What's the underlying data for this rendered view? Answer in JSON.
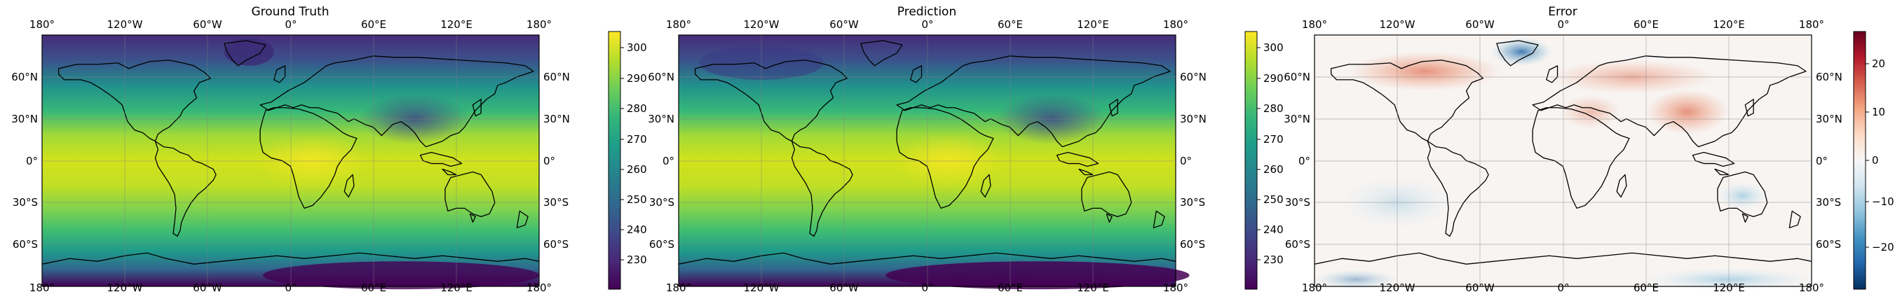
{
  "panels": [
    {
      "title": "Ground Truth",
      "map": "viridis"
    },
    {
      "title": "Prediction",
      "map": "viridis"
    },
    {
      "title": "Error",
      "map": "diverging"
    }
  ],
  "lon_ticks": [
    "180°",
    "120°W",
    "60°W",
    "0°",
    "60°E",
    "120°E",
    "180°"
  ],
  "lat_ticks": [
    "60°N",
    "30°N",
    "0°",
    "30°S",
    "60°S"
  ],
  "colorbars": [
    {
      "name": "colorbar-ground-truth",
      "cmap": "viridis",
      "ticks": [
        "300",
        "290",
        "280",
        "270",
        "260",
        "250",
        "240",
        "230"
      ]
    },
    {
      "name": "colorbar-prediction",
      "cmap": "viridis",
      "ticks": [
        "300",
        "290",
        "280",
        "270",
        "260",
        "250",
        "240",
        "230"
      ]
    },
    {
      "name": "colorbar-error",
      "cmap": "RdBu_r",
      "ticks": [
        "20",
        "10",
        "0",
        "−10",
        "−20"
      ]
    }
  ],
  "colors": {
    "viridis": [
      "#440154",
      "#482878",
      "#3e4989",
      "#31688e",
      "#26828e",
      "#1f9e89",
      "#35b779",
      "#6ece58",
      "#b5de2b",
      "#fde725"
    ],
    "rdbu": [
      "#053061",
      "#2166ac",
      "#4393c3",
      "#92c5de",
      "#d1e5f0",
      "#f7f7f7",
      "#fddbc7",
      "#f4a582",
      "#d6604d",
      "#b2182b",
      "#67001f"
    ]
  }
}
